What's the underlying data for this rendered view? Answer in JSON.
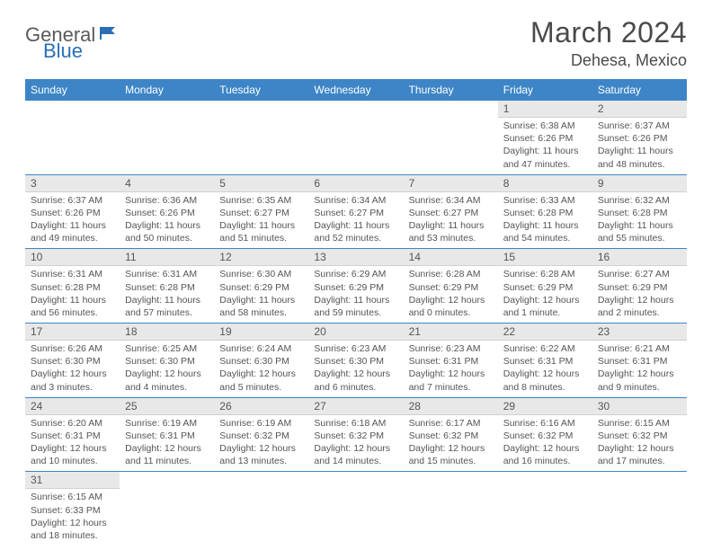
{
  "logo": {
    "part1": "General",
    "part2": "Blue"
  },
  "title": "March 2024",
  "location": "Dehesa, Mexico",
  "colors": {
    "header_bg": "#3d85c6",
    "header_text": "#ffffff",
    "row_separator": "#3d85c6",
    "daynum_bg": "#e8e8e8",
    "text": "#555555",
    "logo_gray": "#5a5a5a",
    "logo_blue": "#2a6fb5"
  },
  "weekdays": [
    "Sunday",
    "Monday",
    "Tuesday",
    "Wednesday",
    "Thursday",
    "Friday",
    "Saturday"
  ],
  "weeks": [
    [
      null,
      null,
      null,
      null,
      null,
      {
        "n": "1",
        "sunrise": "6:38 AM",
        "sunset": "6:26 PM",
        "daylight": "11 hours and 47 minutes."
      },
      {
        "n": "2",
        "sunrise": "6:37 AM",
        "sunset": "6:26 PM",
        "daylight": "11 hours and 48 minutes."
      }
    ],
    [
      {
        "n": "3",
        "sunrise": "6:37 AM",
        "sunset": "6:26 PM",
        "daylight": "11 hours and 49 minutes."
      },
      {
        "n": "4",
        "sunrise": "6:36 AM",
        "sunset": "6:26 PM",
        "daylight": "11 hours and 50 minutes."
      },
      {
        "n": "5",
        "sunrise": "6:35 AM",
        "sunset": "6:27 PM",
        "daylight": "11 hours and 51 minutes."
      },
      {
        "n": "6",
        "sunrise": "6:34 AM",
        "sunset": "6:27 PM",
        "daylight": "11 hours and 52 minutes."
      },
      {
        "n": "7",
        "sunrise": "6:34 AM",
        "sunset": "6:27 PM",
        "daylight": "11 hours and 53 minutes."
      },
      {
        "n": "8",
        "sunrise": "6:33 AM",
        "sunset": "6:28 PM",
        "daylight": "11 hours and 54 minutes."
      },
      {
        "n": "9",
        "sunrise": "6:32 AM",
        "sunset": "6:28 PM",
        "daylight": "11 hours and 55 minutes."
      }
    ],
    [
      {
        "n": "10",
        "sunrise": "6:31 AM",
        "sunset": "6:28 PM",
        "daylight": "11 hours and 56 minutes."
      },
      {
        "n": "11",
        "sunrise": "6:31 AM",
        "sunset": "6:28 PM",
        "daylight": "11 hours and 57 minutes."
      },
      {
        "n": "12",
        "sunrise": "6:30 AM",
        "sunset": "6:29 PM",
        "daylight": "11 hours and 58 minutes."
      },
      {
        "n": "13",
        "sunrise": "6:29 AM",
        "sunset": "6:29 PM",
        "daylight": "11 hours and 59 minutes."
      },
      {
        "n": "14",
        "sunrise": "6:28 AM",
        "sunset": "6:29 PM",
        "daylight": "12 hours and 0 minutes."
      },
      {
        "n": "15",
        "sunrise": "6:28 AM",
        "sunset": "6:29 PM",
        "daylight": "12 hours and 1 minute."
      },
      {
        "n": "16",
        "sunrise": "6:27 AM",
        "sunset": "6:29 PM",
        "daylight": "12 hours and 2 minutes."
      }
    ],
    [
      {
        "n": "17",
        "sunrise": "6:26 AM",
        "sunset": "6:30 PM",
        "daylight": "12 hours and 3 minutes."
      },
      {
        "n": "18",
        "sunrise": "6:25 AM",
        "sunset": "6:30 PM",
        "daylight": "12 hours and 4 minutes."
      },
      {
        "n": "19",
        "sunrise": "6:24 AM",
        "sunset": "6:30 PM",
        "daylight": "12 hours and 5 minutes."
      },
      {
        "n": "20",
        "sunrise": "6:23 AM",
        "sunset": "6:30 PM",
        "daylight": "12 hours and 6 minutes."
      },
      {
        "n": "21",
        "sunrise": "6:23 AM",
        "sunset": "6:31 PM",
        "daylight": "12 hours and 7 minutes."
      },
      {
        "n": "22",
        "sunrise": "6:22 AM",
        "sunset": "6:31 PM",
        "daylight": "12 hours and 8 minutes."
      },
      {
        "n": "23",
        "sunrise": "6:21 AM",
        "sunset": "6:31 PM",
        "daylight": "12 hours and 9 minutes."
      }
    ],
    [
      {
        "n": "24",
        "sunrise": "6:20 AM",
        "sunset": "6:31 PM",
        "daylight": "12 hours and 10 minutes."
      },
      {
        "n": "25",
        "sunrise": "6:19 AM",
        "sunset": "6:31 PM",
        "daylight": "12 hours and 11 minutes."
      },
      {
        "n": "26",
        "sunrise": "6:19 AM",
        "sunset": "6:32 PM",
        "daylight": "12 hours and 13 minutes."
      },
      {
        "n": "27",
        "sunrise": "6:18 AM",
        "sunset": "6:32 PM",
        "daylight": "12 hours and 14 minutes."
      },
      {
        "n": "28",
        "sunrise": "6:17 AM",
        "sunset": "6:32 PM",
        "daylight": "12 hours and 15 minutes."
      },
      {
        "n": "29",
        "sunrise": "6:16 AM",
        "sunset": "6:32 PM",
        "daylight": "12 hours and 16 minutes."
      },
      {
        "n": "30",
        "sunrise": "6:15 AM",
        "sunset": "6:32 PM",
        "daylight": "12 hours and 17 minutes."
      }
    ],
    [
      {
        "n": "31",
        "sunrise": "6:15 AM",
        "sunset": "6:33 PM",
        "daylight": "12 hours and 18 minutes."
      },
      null,
      null,
      null,
      null,
      null,
      null
    ]
  ],
  "labels": {
    "sunrise": "Sunrise:",
    "sunset": "Sunset:",
    "daylight": "Daylight:"
  }
}
